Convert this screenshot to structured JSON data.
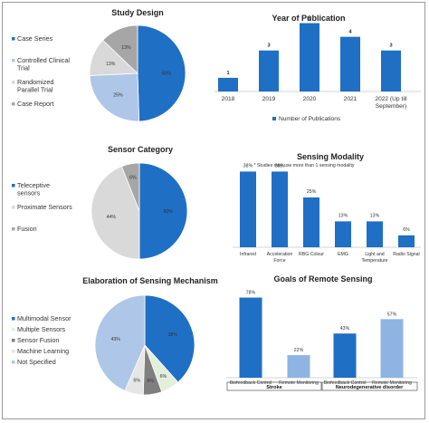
{
  "chart_data": [
    {
      "id": "study_design",
      "type": "pie",
      "title": "Study Design",
      "categories": [
        "Case Series",
        "Controlled Clinical Trial",
        "Randomized Parallel Trial",
        "Case Report"
      ],
      "legend_lines": [
        [
          "Case Series"
        ],
        [
          "Controlled Clinical",
          "Trial"
        ],
        [
          "Randomized",
          "Parallel Trial"
        ],
        [
          "Case Report"
        ]
      ],
      "values": [
        50,
        25,
        13,
        13
      ],
      "labels": [
        "50%",
        "25%",
        "13%",
        "13%"
      ],
      "colors": [
        "#1f6fc5",
        "#aec7e8",
        "#d9d9d9",
        "#a6a6a6"
      ],
      "legend_position": "left"
    },
    {
      "id": "year_of_publication",
      "type": "bar",
      "title": "Year of Publication",
      "categories": [
        "2018",
        "2019",
        "2020",
        "2021",
        "2022 (Up till September)"
      ],
      "category_lines": [
        [
          "2018"
        ],
        [
          "2019"
        ],
        [
          "2020"
        ],
        [
          "2021"
        ],
        [
          "2022 (Up till",
          "September)"
        ]
      ],
      "series": [
        {
          "name": "Number of Publications",
          "values": [
            1,
            3,
            5,
            4,
            3
          ]
        }
      ],
      "data_labels": [
        "1",
        "3",
        "5",
        "4",
        "3"
      ],
      "color": "#1f6fc5",
      "ylim": [
        0,
        5.5
      ],
      "legend_position": "bottom"
    },
    {
      "id": "sensor_category",
      "type": "pie",
      "title": "Sensor Category",
      "categories": [
        "Teleceptive sensors",
        "Proximate Sensors",
        "Fusion"
      ],
      "legend_lines": [
        [
          "Teleceptive",
          "sensors"
        ],
        [
          "Proximate Sensors"
        ],
        [
          "Fusion"
        ]
      ],
      "values": [
        50,
        44,
        6
      ],
      "labels": [
        "50%",
        "44%",
        "6%"
      ],
      "colors": [
        "#1f6fc5",
        "#d9d9d9",
        "#a6a6a6"
      ],
      "legend_position": "left"
    },
    {
      "id": "sensing_modality",
      "type": "bar",
      "title": "Sensing Modality",
      "subtitle": "* Studies may use more than 1 sensing modality",
      "categories": [
        "Infrared",
        "Acceleration Force",
        "RBG Colour",
        "EMG",
        "Light and Temperature",
        "Radio Signal"
      ],
      "category_lines": [
        [
          "Infrared"
        ],
        [
          "Acceleration",
          "Force"
        ],
        [
          "RBG Colour"
        ],
        [
          "EMG"
        ],
        [
          "Light and",
          "Temperature"
        ],
        [
          "Radio Signal"
        ]
      ],
      "values": [
        38,
        38,
        25,
        13,
        13,
        6
      ],
      "data_labels": [
        "38%",
        "38%",
        "25%",
        "13%",
        "13%",
        "6%"
      ],
      "color": "#1f6fc5",
      "ylim": [
        0,
        40
      ]
    },
    {
      "id": "sensing_mechanism",
      "type": "pie",
      "title": "Elaboration of Sensing Mechanism",
      "categories": [
        "Multimodal Sensor",
        "Multiple Sensors",
        "Sensor Fusion",
        "Machine Learning",
        "Not Specified"
      ],
      "values": [
        38,
        6,
        6,
        6,
        43
      ],
      "labels": [
        "38%",
        "6%",
        "6%",
        "6%",
        "43%"
      ],
      "colors": [
        "#1f6fc5",
        "#e2efda",
        "#7f7f7f",
        "#e7e6e6",
        "#aec7e8"
      ],
      "legend_position": "left"
    },
    {
      "id": "goals_remote_sensing",
      "type": "bar",
      "title": "Goals of Remote Sensing",
      "categories": [
        "Biofeedback Control",
        "Remote Monitoring",
        "Biofeedback Control",
        "Remote Monitoring"
      ],
      "groups": [
        "Stroke",
        "Neurodegenerative disorder"
      ],
      "values": [
        78,
        22,
        43,
        57
      ],
      "data_labels": [
        "78%",
        "22%",
        "43%",
        "57%"
      ],
      "colors": [
        "#1f6fc5",
        "#8eb4e3",
        "#1f6fc5",
        "#8eb4e3"
      ],
      "ylim": [
        0,
        82
      ]
    }
  ]
}
